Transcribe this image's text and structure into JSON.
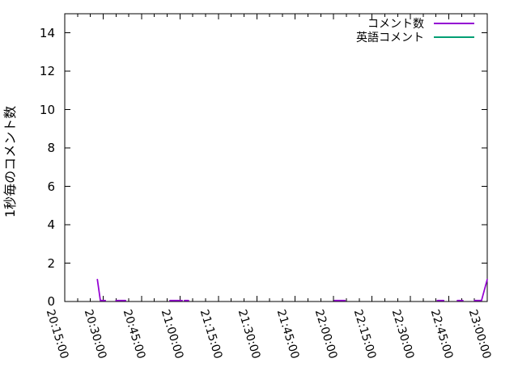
{
  "figure": {
    "background": "#ffffff",
    "border_color": "#000000"
  },
  "chart_data": {
    "type": "line",
    "title": "",
    "xlabel": "",
    "ylabel": "1秒毎のコメント数",
    "ylim": [
      0,
      15
    ],
    "y_ticks": [
      0,
      2,
      4,
      6,
      8,
      10,
      12,
      14
    ],
    "x_range": [
      "20:15:00",
      "23:00:00"
    ],
    "x_ticks": [
      "20:15:00",
      "20:30:00",
      "20:45:00",
      "21:00:00",
      "21:15:00",
      "21:30:00",
      "21:45:00",
      "22:00:00",
      "22:15:00",
      "22:30:00",
      "22:45:00",
      "23:00:00"
    ],
    "x_minor_tick_interval_seconds": 300,
    "grid": false,
    "legend_position": "top-right-inside",
    "series": [
      {
        "name": "コメント数",
        "color": "#9400d3",
        "segments": [
          [
            [
              "20:27:45",
              1.15
            ],
            [
              "20:28:55",
              0.05
            ],
            [
              "20:30:50",
              0.05
            ]
          ],
          [
            [
              "20:35:00",
              0.05
            ],
            [
              "20:38:45",
              0.05
            ]
          ],
          [
            [
              "20:56:05",
              0.05
            ],
            [
              "21:00:50",
              0.05
            ]
          ],
          [
            [
              "21:01:45",
              0.05
            ],
            [
              "21:03:20",
              0.05
            ]
          ],
          [
            [
              "22:00:20",
              0.05
            ],
            [
              "22:04:25",
              0.05
            ]
          ],
          [
            [
              "22:40:30",
              0.05
            ],
            [
              "22:43:00",
              0.05
            ]
          ],
          [
            [
              "22:48:20",
              0.05
            ],
            [
              "22:50:30",
              0.05
            ]
          ],
          [
            [
              "22:55:00",
              0.05
            ],
            [
              "22:57:45",
              0.05
            ],
            [
              "23:00:00",
              1.15
            ]
          ]
        ]
      },
      {
        "name": "英語コメント",
        "color": "#009e73",
        "segments": []
      }
    ]
  }
}
